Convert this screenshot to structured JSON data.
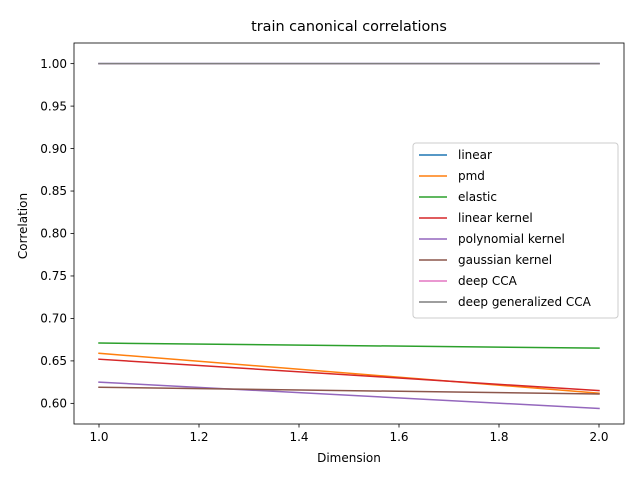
{
  "chart_data": {
    "type": "line",
    "title": "train canonical correlations",
    "xlabel": "Dimension",
    "ylabel": "Correlation",
    "xlim": [
      0.95,
      2.05
    ],
    "ylim": [
      0.5757,
      1.0243
    ],
    "x": [
      1,
      2
    ],
    "x_ticks": [
      1.0,
      1.2,
      1.4,
      1.6,
      1.8,
      2.0
    ],
    "x_tick_labels": [
      "1.0",
      "1.2",
      "1.4",
      "1.6",
      "1.8",
      "2.0"
    ],
    "y_ticks": [
      0.6,
      0.65,
      0.7,
      0.75,
      0.8,
      0.85,
      0.9,
      0.95,
      1.0
    ],
    "y_tick_labels": [
      "0.60",
      "0.65",
      "0.70",
      "0.75",
      "0.80",
      "0.85",
      "0.90",
      "0.95",
      "1.00"
    ],
    "grid": false,
    "legend_position": "center-right",
    "series": [
      {
        "name": "linear",
        "color": "#1f77b4",
        "values": [
          1.0,
          1.0
        ]
      },
      {
        "name": "pmd",
        "color": "#ff7f0e",
        "values": [
          0.659,
          0.612
        ]
      },
      {
        "name": "elastic",
        "color": "#2ca02c",
        "values": [
          0.671,
          0.665
        ]
      },
      {
        "name": "linear kernel",
        "color": "#d62728",
        "values": [
          0.652,
          0.615
        ]
      },
      {
        "name": "polynomial kernel",
        "color": "#9467bd",
        "values": [
          0.625,
          0.594
        ]
      },
      {
        "name": "gaussian kernel",
        "color": "#8c564b",
        "values": [
          0.619,
          0.611
        ]
      },
      {
        "name": "deep CCA",
        "color": "#e377c2",
        "values": [
          1.0,
          1.0
        ]
      },
      {
        "name": "deep generalized CCA",
        "color": "#7f7f7f",
        "values": [
          1.0,
          1.0
        ]
      }
    ]
  }
}
